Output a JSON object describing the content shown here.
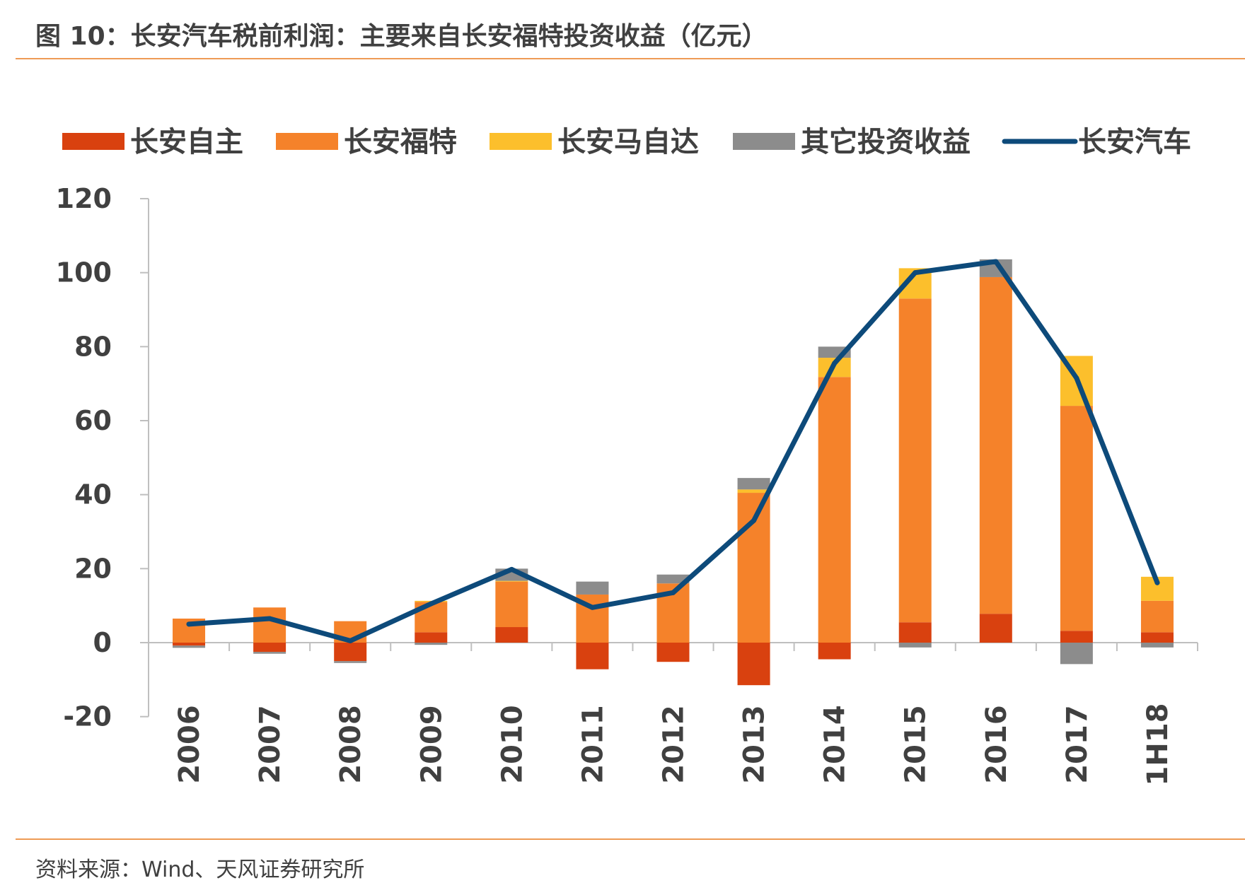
{
  "title": "图 10：长安汽车税前利润：主要来自长安福特投资收益（亿元）",
  "source": "资料来源：Wind、天风证券研究所",
  "chart_data": {
    "type": "bar",
    "stacked": true,
    "categories": [
      "2006",
      "2007",
      "2008",
      "2009",
      "2010",
      "2011",
      "2012",
      "2013",
      "2014",
      "2015",
      "2016",
      "2017",
      "1H18"
    ],
    "ylim": [
      -20,
      120
    ],
    "yticks": [
      120,
      100,
      80,
      60,
      40,
      20,
      0,
      -20
    ],
    "legend_position": "top",
    "series": [
      {
        "name": "长安自主",
        "kind": "bar",
        "color": "#d9410f",
        "values": [
          -0.8,
          -2.5,
          -5,
          2.8,
          4.2,
          -7.2,
          -5.2,
          -11.5,
          -4.5,
          5.5,
          7.8,
          3.2,
          2.8
        ]
      },
      {
        "name": "长安福特",
        "kind": "bar",
        "color": "#f5822a",
        "values": [
          6.5,
          9.5,
          5.8,
          8.2,
          12.3,
          13.0,
          16.0,
          40.5,
          71.8,
          87.5,
          91.0,
          60.8,
          8.5
        ]
      },
      {
        "name": "长安马自达",
        "kind": "bar",
        "color": "#fcbf2c",
        "values": [
          0,
          0,
          0,
          0.3,
          0.2,
          0,
          0,
          0.9,
          5.2,
          8.2,
          0,
          13.5,
          6.5
        ]
      },
      {
        "name": "其它投资收益",
        "kind": "bar",
        "color": "#8c8c8c",
        "values": [
          -0.6,
          -0.5,
          -0.5,
          -0.6,
          3.3,
          3.5,
          2.4,
          3.1,
          3.0,
          -1.3,
          4.8,
          -5.8,
          -1.3
        ]
      },
      {
        "name": "长安汽车",
        "kind": "line",
        "color": "#0d4a7a",
        "values": [
          5.0,
          6.5,
          0.5,
          10.5,
          19.8,
          9.5,
          13.5,
          33.0,
          75.5,
          100.0,
          103.0,
          71.5,
          16.2
        ]
      }
    ]
  }
}
